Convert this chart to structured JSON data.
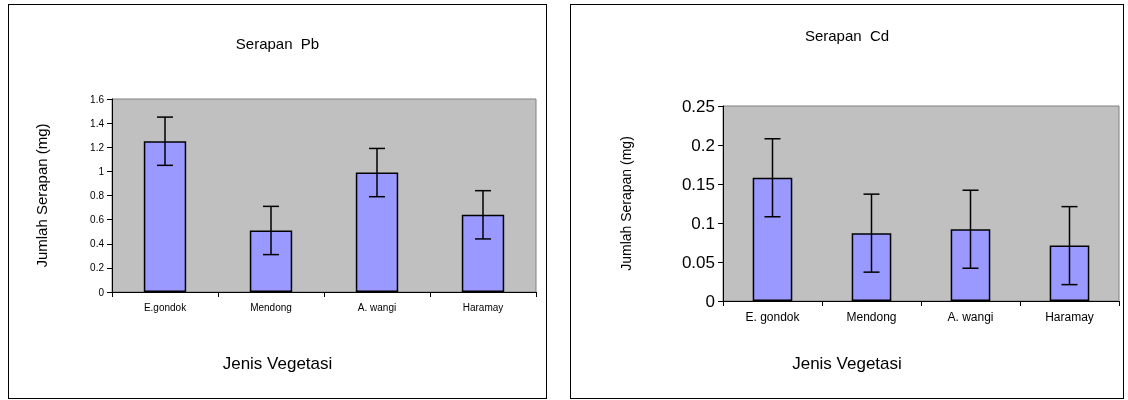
{
  "chart_data": [
    {
      "type": "bar",
      "title": "Serapan  Pb",
      "xlabel": "Jenis Vegetasi",
      "ylabel": "Jumlah Serapan (mg)",
      "categories": [
        "E.gondok",
        "Mendong",
        "A. wangi",
        "Haramay"
      ],
      "values": [
        1.25,
        0.51,
        0.99,
        0.64
      ],
      "errors": [
        0.2,
        0.2,
        0.2,
        0.2
      ],
      "color": "#9999ff",
      "ylim": [
        0,
        1.6
      ],
      "yticks": [
        0,
        0.2,
        0.4,
        0.6,
        0.8,
        1,
        1.2,
        1.4,
        1.6
      ],
      "grid": false
    },
    {
      "type": "bar",
      "title": "Serapan  Cd",
      "xlabel": "Jenis Vegetasi",
      "ylabel": "Jumlah Serapan (mg)",
      "categories": [
        "E. gondok",
        "Mendong",
        "A. wangi",
        "Haramay"
      ],
      "values": [
        0.158,
        0.087,
        0.092,
        0.071
      ],
      "errors": [
        0.05,
        0.05,
        0.05,
        0.05
      ],
      "color": "#9999ff",
      "ylim": [
        0,
        0.25
      ],
      "yticks": [
        0,
        0.05,
        0.1,
        0.15,
        0.2,
        0.25
      ],
      "grid": false
    }
  ]
}
